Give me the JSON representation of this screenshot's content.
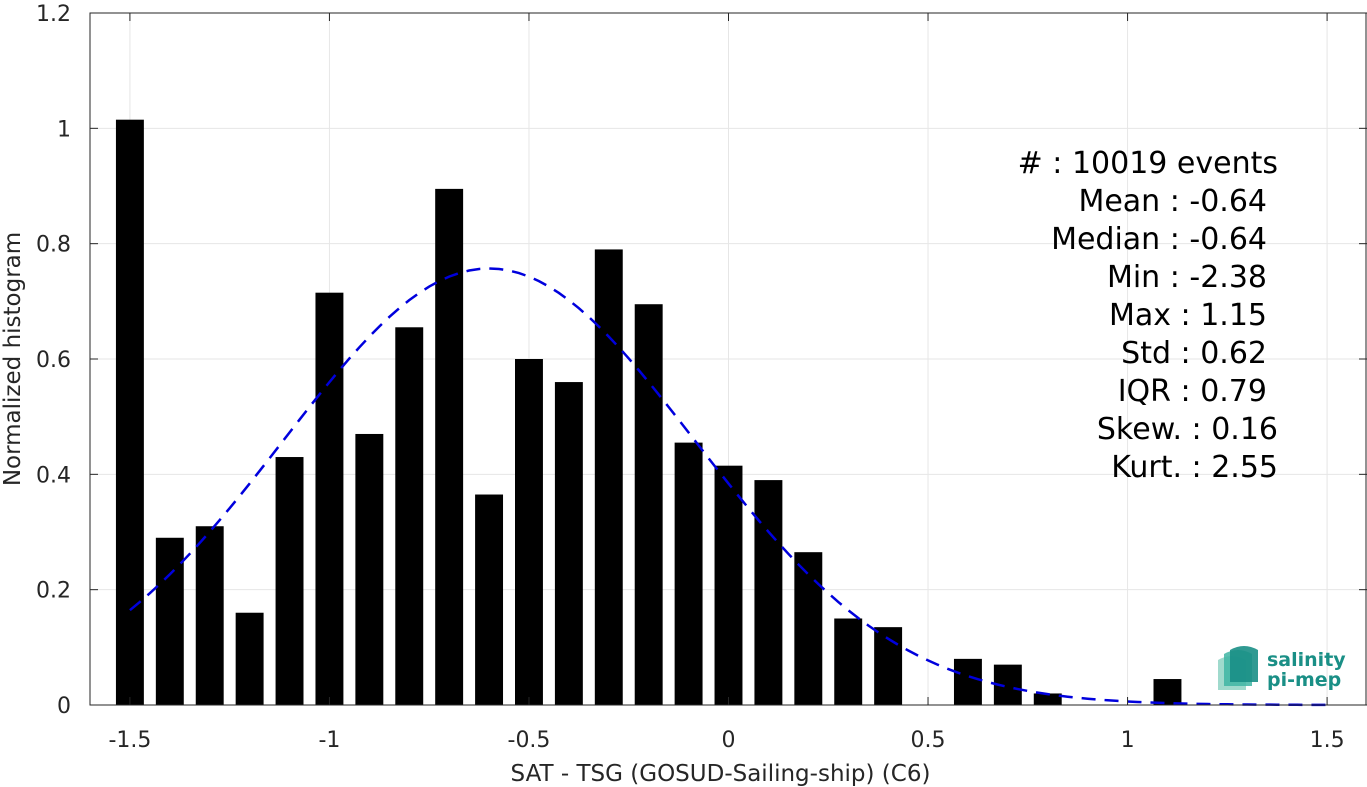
{
  "chart_data": {
    "type": "bar",
    "xlabel": "SAT - TSG (GOSUD-Sailing-ship) (C6)",
    "ylabel": "Normalized histogram",
    "xlim": [
      -1.6,
      1.6
    ],
    "ylim": [
      0,
      1.2
    ],
    "grid": true,
    "x_ticks": [
      -1.5,
      -1,
      -0.5,
      0,
      0.5,
      1,
      1.5
    ],
    "x_tick_labels": [
      "-1.5",
      "-1",
      "-0.5",
      "0",
      "0.5",
      "1",
      "1.5"
    ],
    "y_ticks": [
      0,
      0.2,
      0.4,
      0.6,
      0.8,
      1,
      1.2
    ],
    "y_tick_labels": [
      "0",
      "0.2",
      "0.4",
      "0.6",
      "0.8",
      "1",
      "1.2"
    ],
    "bar_width": 0.07,
    "bars": [
      {
        "x": -1.5,
        "value": 1.015
      },
      {
        "x": -1.4,
        "value": 0.29
      },
      {
        "x": -1.3,
        "value": 0.31
      },
      {
        "x": -1.2,
        "value": 0.16
      },
      {
        "x": -1.1,
        "value": 0.43
      },
      {
        "x": -1.0,
        "value": 0.715
      },
      {
        "x": -0.9,
        "value": 0.47
      },
      {
        "x": -0.8,
        "value": 0.655
      },
      {
        "x": -0.7,
        "value": 0.895
      },
      {
        "x": -0.6,
        "value": 0.365
      },
      {
        "x": -0.5,
        "value": 0.6
      },
      {
        "x": -0.4,
        "value": 0.56
      },
      {
        "x": -0.3,
        "value": 0.79
      },
      {
        "x": -0.2,
        "value": 0.695
      },
      {
        "x": -0.1,
        "value": 0.455
      },
      {
        "x": 0.0,
        "value": 0.415
      },
      {
        "x": 0.1,
        "value": 0.39
      },
      {
        "x": 0.2,
        "value": 0.265
      },
      {
        "x": 0.3,
        "value": 0.15
      },
      {
        "x": 0.4,
        "value": 0.135
      },
      {
        "x": 0.6,
        "value": 0.08
      },
      {
        "x": 0.7,
        "value": 0.07
      },
      {
        "x": 0.8,
        "value": 0.02
      },
      {
        "x": 1.1,
        "value": 0.045
      }
    ],
    "fit_curve": {
      "style": "dashed",
      "color": "#0000dd",
      "mean": -0.6,
      "std": 0.515,
      "peak": 0.757,
      "x_range": [
        -1.5,
        1.5
      ]
    },
    "bar_color": "#000000"
  },
  "stats": [
    "#  : 10019 events",
    "Mean : -0.64",
    "Median : -0.64",
    "Min : -2.38",
    "Max : 1.15",
    "Std : 0.62",
    "IQR : 0.79",
    "Skew. : 0.16",
    "Kurt. : 2.55"
  ],
  "logo": {
    "line1": "salinity",
    "line2": "pi-mep",
    "color": "#1a8f86"
  }
}
